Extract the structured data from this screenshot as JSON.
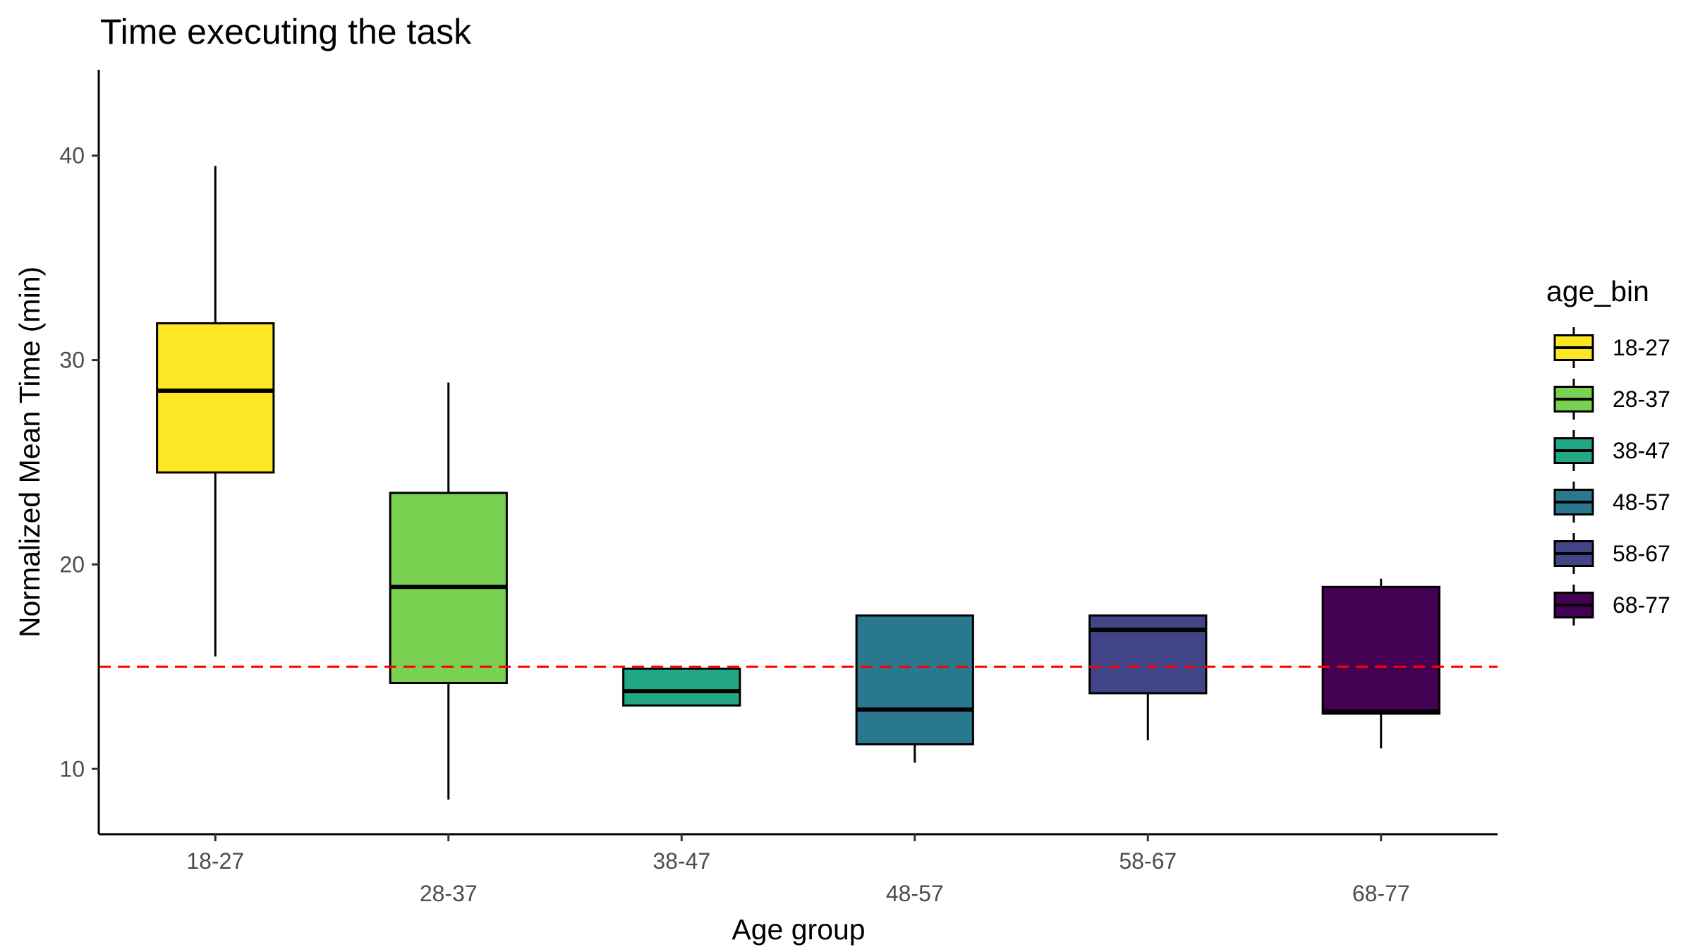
{
  "chart_data": {
    "type": "boxplot",
    "title": "Time executing the task",
    "xlabel": "Age group",
    "ylabel": "Normalized Mean Time (min)",
    "ylim": [
      6.8,
      44.2
    ],
    "yticks": [
      10,
      20,
      30,
      40
    ],
    "categories": [
      "18-27",
      "28-37",
      "38-47",
      "48-57",
      "58-67",
      "68-77"
    ],
    "boxes": [
      {
        "category": "18-27",
        "whisker_low": 15.5,
        "q1": 24.5,
        "median": 28.5,
        "q3": 31.8,
        "whisker_high": 39.5,
        "color": "#FDE725"
      },
      {
        "category": "28-37",
        "whisker_low": 8.5,
        "q1": 14.2,
        "median": 18.9,
        "q3": 23.5,
        "whisker_high": 28.9,
        "color": "#7AD151"
      },
      {
        "category": "38-47",
        "whisker_low": 13.1,
        "q1": 13.1,
        "median": 13.8,
        "q3": 14.9,
        "whisker_high": 14.9,
        "color": "#22A884"
      },
      {
        "category": "48-57",
        "whisker_low": 10.3,
        "q1": 11.2,
        "median": 12.9,
        "q3": 17.5,
        "whisker_high": 17.5,
        "color": "#2A788E"
      },
      {
        "category": "58-67",
        "whisker_low": 11.4,
        "q1": 13.7,
        "median": 16.8,
        "q3": 17.5,
        "whisker_high": 17.5,
        "color": "#414487"
      },
      {
        "category": "68-77",
        "whisker_low": 11.0,
        "q1": 12.7,
        "median": 12.8,
        "q3": 18.9,
        "whisker_high": 19.3,
        "color": "#440154"
      }
    ],
    "reference_line": {
      "y": 15,
      "color": "#FF0000",
      "style": "dashed"
    },
    "legend": {
      "title": "age_bin",
      "position": "right",
      "entries": [
        "18-27",
        "28-37",
        "38-47",
        "48-57",
        "58-67",
        "68-77"
      ]
    },
    "grid": false
  }
}
